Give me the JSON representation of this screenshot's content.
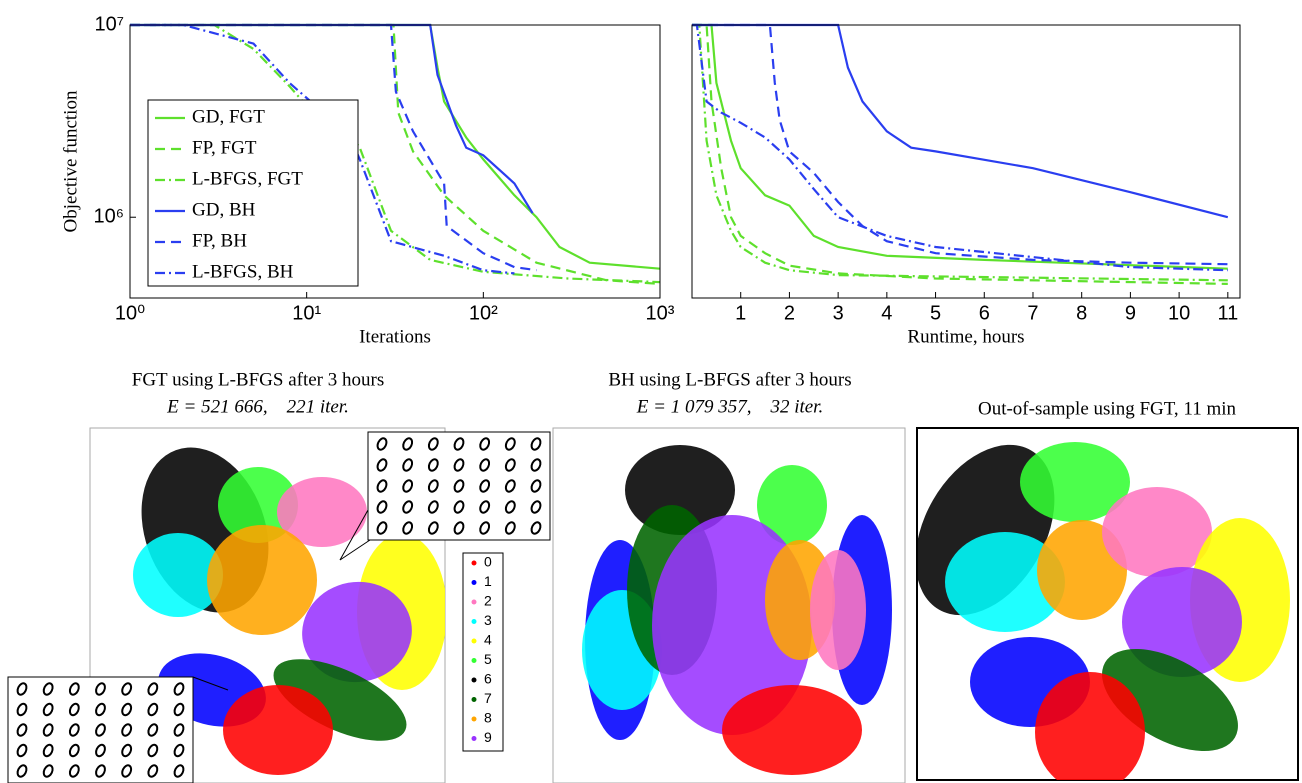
{
  "chart_data": [
    {
      "type": "line",
      "x_scale": "log",
      "y_scale": "log",
      "ylabel": "Objective function",
      "xlabel": "Iterations",
      "xlim": [
        1,
        1000
      ],
      "xticks": [
        {
          "value": 1,
          "label": "10⁰"
        },
        {
          "value": 10,
          "label": "10¹"
        },
        {
          "value": 100,
          "label": "10²"
        },
        {
          "value": 1000,
          "label": "10³"
        }
      ],
      "ylim": [
        380000,
        10000000
      ],
      "yticks": [
        {
          "value": 1000000,
          "label": "10⁶"
        },
        {
          "value": 10000000,
          "label": "10⁷"
        }
      ],
      "legend": "left",
      "series": [
        {
          "name": "GD, FGT",
          "color": "#5ee02c",
          "dash": "solid",
          "x": [
            1,
            50,
            55,
            60,
            80,
            100,
            150,
            200,
            270,
            400,
            1000
          ],
          "values": [
            10000000,
            10000000,
            6000000,
            4000000,
            2600000,
            2000000,
            1300000,
            1000000,
            700000,
            580000,
            540000
          ]
        },
        {
          "name": "FP, FGT",
          "color": "#5ee02c",
          "dash": "dashed",
          "x": [
            1,
            31,
            33,
            40,
            60,
            100,
            200,
            500,
            1000
          ],
          "values": [
            10000000,
            10000000,
            3500000,
            2200000,
            1300000,
            850000,
            580000,
            470000,
            450000
          ]
        },
        {
          "name": "L-BFGS, FGT",
          "color": "#5ee02c",
          "dash": "dashdot",
          "x": [
            1,
            3,
            5,
            8,
            10,
            15,
            20,
            30,
            50,
            100,
            300,
            1000
          ],
          "values": [
            10000000,
            10000000,
            7500000,
            4800000,
            3800000,
            3300000,
            2300000,
            850000,
            600000,
            520000,
            480000,
            460000
          ]
        },
        {
          "name": "GD, BH",
          "color": "#2a3ef0",
          "dash": "solid",
          "x": [
            1,
            50,
            55,
            70,
            80,
            100,
            150,
            190
          ],
          "values": [
            10000000,
            10000000,
            5500000,
            3000000,
            2300000,
            2100000,
            1500000,
            1050000
          ]
        },
        {
          "name": "FP, BH",
          "color": "#2a3ef0",
          "dash": "dashed",
          "x": [
            1,
            30,
            32,
            40,
            60,
            62,
            100,
            150,
            200
          ],
          "values": [
            10000000,
            10000000,
            4500000,
            2800000,
            1500000,
            900000,
            650000,
            550000,
            530000
          ]
        },
        {
          "name": "L-BFGS, BH",
          "color": "#2a3ef0",
          "dash": "dashdot",
          "x": [
            1,
            2,
            5,
            8,
            12,
            16,
            20,
            30,
            60,
            100,
            150
          ],
          "values": [
            10000000,
            10000000,
            8000000,
            5000000,
            3600000,
            3200000,
            2000000,
            750000,
            630000,
            530000,
            510000
          ]
        }
      ]
    },
    {
      "type": "line",
      "x_scale": "linear",
      "y_scale": "log",
      "xlabel": "Runtime, hours",
      "xlim": [
        0,
        11.25
      ],
      "xticks": [
        1,
        2,
        3,
        4,
        5,
        6,
        7,
        8,
        9,
        10,
        11
      ],
      "ylim": [
        380000,
        10000000
      ],
      "series": [
        {
          "color": "#5ee02c",
          "dash": "solid",
          "x": [
            0,
            0.4,
            0.5,
            0.8,
            1,
            1.5,
            2,
            2.5,
            3,
            4,
            6,
            11
          ],
          "values": [
            10000000,
            10000000,
            5000000,
            2500000,
            1800000,
            1300000,
            1150000,
            800000,
            700000,
            630000,
            600000,
            540000
          ]
        },
        {
          "color": "#5ee02c",
          "dash": "dashed",
          "x": [
            0,
            0.3,
            0.4,
            0.6,
            0.8,
            1,
            1.5,
            2,
            3,
            5,
            11
          ],
          "values": [
            10000000,
            10000000,
            4000000,
            1800000,
            1000000,
            800000,
            650000,
            560000,
            510000,
            480000,
            450000
          ]
        },
        {
          "color": "#5ee02c",
          "dash": "dashdot",
          "x": [
            0,
            0.15,
            0.3,
            0.5,
            0.8,
            1,
            1.5,
            2,
            3,
            11
          ],
          "values": [
            10000000,
            10000000,
            2500000,
            1300000,
            850000,
            700000,
            580000,
            530000,
            500000,
            470000
          ]
        },
        {
          "color": "#2a3ef0",
          "dash": "solid",
          "x": [
            0,
            3,
            3.2,
            3.5,
            4,
            4.5,
            5,
            7,
            9,
            11
          ],
          "values": [
            10000000,
            10000000,
            6000000,
            4000000,
            2800000,
            2300000,
            2200000,
            1800000,
            1350000,
            1000000
          ]
        },
        {
          "color": "#2a3ef0",
          "dash": "dashed",
          "x": [
            0,
            1.6,
            1.7,
            1.8,
            2,
            2.5,
            3,
            3.5,
            4,
            5,
            7,
            9,
            11
          ],
          "values": [
            10000000,
            10000000,
            5000000,
            3200000,
            2200000,
            1700000,
            1200000,
            900000,
            750000,
            650000,
            600000,
            580000,
            570000
          ]
        },
        {
          "color": "#2a3ef0",
          "dash": "dashdot",
          "x": [
            0,
            0.1,
            0.3,
            0.6,
            1,
            1.5,
            2,
            2.5,
            3,
            4,
            5,
            7,
            9,
            11
          ],
          "values": [
            10000000,
            10000000,
            4000000,
            3500000,
            3100000,
            2600000,
            2000000,
            1400000,
            1000000,
            800000,
            700000,
            620000,
            550000,
            530000
          ]
        }
      ]
    }
  ],
  "embedding_legend": {
    "labels": [
      "0",
      "1",
      "2",
      "3",
      "4",
      "5",
      "6",
      "7",
      "8",
      "9"
    ],
    "colors": [
      "#ff0000",
      "#0000ff",
      "#ff77c0",
      "#00ffff",
      "#ffff00",
      "#33ff33",
      "#000000",
      "#006400",
      "#ffa500",
      "#9933ff"
    ]
  },
  "panels": [
    {
      "title": "FGT using L-BFGS after 3 hours",
      "subtitle": "E = 521 666,    221 iter."
    },
    {
      "title": "BH using L-BFGS after 3 hours",
      "subtitle": "E = 1 079 357,    32 iter."
    },
    {
      "title": "Out-of-sample using FGT, 11 min"
    }
  ]
}
